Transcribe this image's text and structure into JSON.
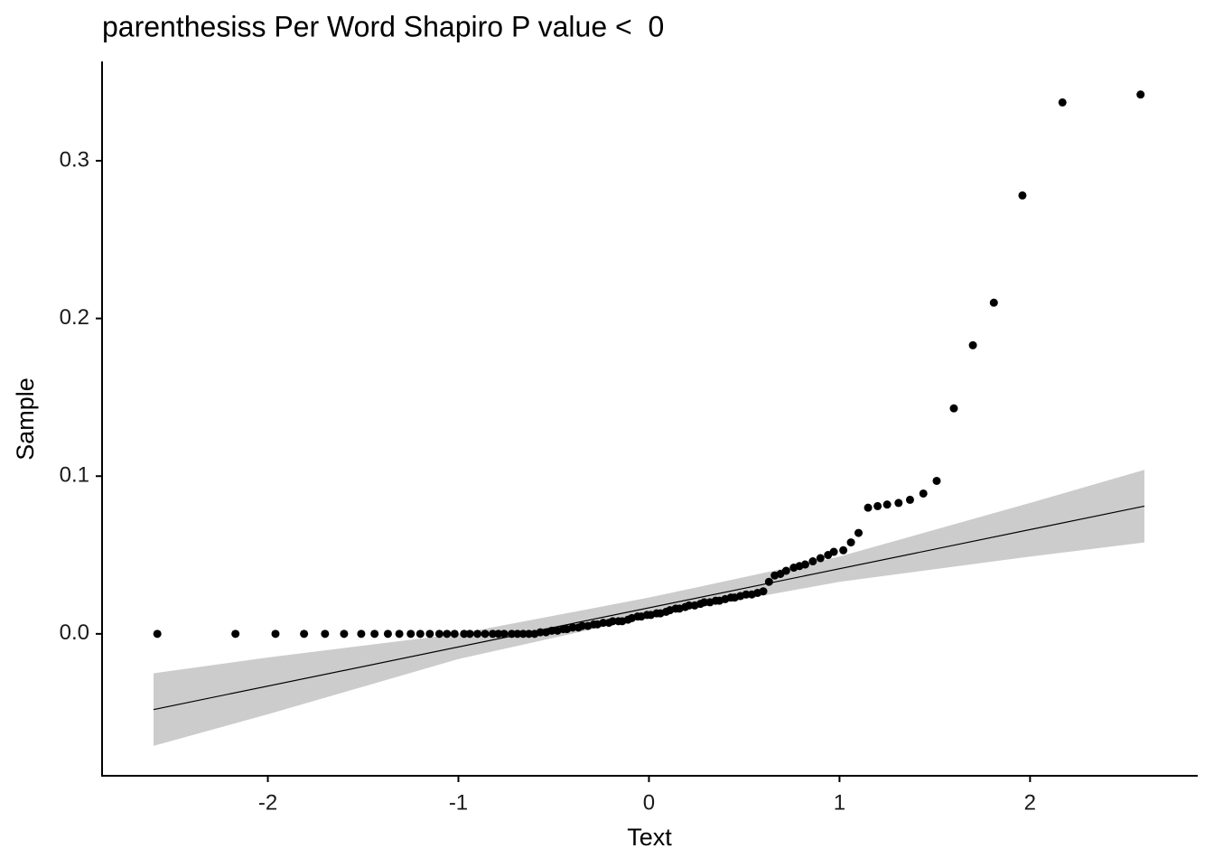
{
  "chart_data": {
    "type": "scatter",
    "title": "parenthesiss Per Word Shapiro P value <  0",
    "x_label": "Text",
    "y_label": "Sample",
    "xlim": [
      -2.87,
      2.88
    ],
    "ylim": [
      -0.09,
      0.363
    ],
    "xticks": [
      -2,
      -1,
      0,
      1,
      2
    ],
    "yticks": [
      {
        "value": 0,
        "label": "0.0"
      },
      0.1,
      0.2,
      0.3
    ],
    "grid": false,
    "color": "#000000",
    "x": [
      -2.58,
      -2.17,
      -1.96,
      -1.81,
      -1.7,
      -1.6,
      -1.51,
      -1.44,
      -1.37,
      -1.31,
      -1.25,
      -1.2,
      -1.15,
      -1.1,
      -1.06,
      -1.02,
      -0.97,
      -0.94,
      -0.9,
      -0.86,
      -0.82,
      -0.79,
      -0.76,
      -0.72,
      -0.69,
      -0.66,
      -0.63,
      -0.6,
      -0.57,
      -0.54,
      -0.51,
      -0.48,
      -0.45,
      -0.43,
      -0.4,
      -0.37,
      -0.35,
      -0.32,
      -0.29,
      -0.27,
      -0.24,
      -0.21,
      -0.19,
      -0.16,
      -0.14,
      -0.11,
      -0.09,
      -0.06,
      -0.04,
      -0.01,
      0.01,
      0.04,
      0.06,
      0.09,
      0.11,
      0.14,
      0.16,
      0.19,
      0.21,
      0.24,
      0.27,
      0.29,
      0.32,
      0.35,
      0.37,
      0.4,
      0.43,
      0.45,
      0.48,
      0.51,
      0.54,
      0.57,
      0.6,
      0.63,
      0.66,
      0.69,
      0.72,
      0.76,
      0.79,
      0.82,
      0.86,
      0.9,
      0.94,
      0.97,
      1.02,
      1.06,
      1.1,
      1.15,
      1.2,
      1.25,
      1.31,
      1.37,
      1.44,
      1.51,
      1.6,
      1.7,
      1.81,
      1.96,
      2.17,
      2.58
    ],
    "values": [
      0,
      0,
      0,
      0,
      0,
      0,
      0,
      0,
      0,
      0,
      0,
      0,
      0,
      0,
      0,
      0,
      0,
      0,
      0,
      0,
      0,
      0,
      0,
      0,
      0,
      0,
      0,
      0,
      0.001,
      0.001,
      0.002,
      0.002,
      0.003,
      0.003,
      0.004,
      0.004,
      0.005,
      0.005,
      0.006,
      0.006,
      0.007,
      0.007,
      0.008,
      0.008,
      0.008,
      0.009,
      0.01,
      0.011,
      0.011,
      0.012,
      0.012,
      0.013,
      0.013,
      0.014,
      0.015,
      0.016,
      0.016,
      0.017,
      0.018,
      0.018,
      0.019,
      0.02,
      0.02,
      0.021,
      0.021,
      0.022,
      0.023,
      0.023,
      0.024,
      0.025,
      0.025,
      0.026,
      0.027,
      0.033,
      0.037,
      0.038,
      0.04,
      0.042,
      0.043,
      0.044,
      0.046,
      0.048,
      0.05,
      0.052,
      0.053,
      0.058,
      0.064,
      0.08,
      0.081,
      0.082,
      0.083,
      0.085,
      0.089,
      0.097,
      0.143,
      0.183,
      0.21,
      0.278,
      0.337,
      0.342
    ],
    "reference_line": {
      "color": "#000000",
      "x": [
        -2.6,
        2.6
      ],
      "values": [
        -0.048,
        0.081
      ]
    },
    "band": {
      "color": "#cccccc",
      "x": [
        -2.6,
        -2,
        -1,
        0,
        1,
        2,
        2.6
      ],
      "lower": [
        -0.071,
        -0.051,
        -0.016,
        0.011,
        0.033,
        0.049,
        0.058
      ],
      "upper": [
        -0.025,
        -0.015,
        0.0,
        0.023,
        0.049,
        0.083,
        0.104
      ]
    }
  }
}
